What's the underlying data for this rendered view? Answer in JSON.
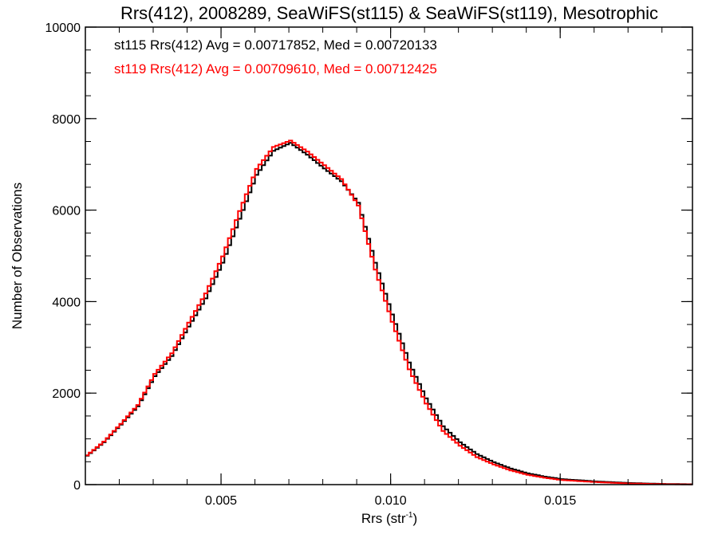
{
  "chart_data": {
    "type": "line",
    "style": "step histogram",
    "title": "Rrs(412), 2008289, SeaWiFS(st115) & SeaWiFS(st119), Mesotrophic",
    "xlabel": "Rrs (str",
    "xlabel_sup": "-1",
    "xlabel_end": ")",
    "ylabel": "Number of Observations",
    "xlim": [
      0.001,
      0.0189
    ],
    "ylim": [
      0,
      10000
    ],
    "x_ticks": [
      0.005,
      0.01,
      0.015
    ],
    "x_tick_labels": [
      "0.005",
      "0.010",
      "0.015"
    ],
    "x_minor_step": 0.001,
    "y_ticks": [
      0,
      2000,
      4000,
      6000,
      8000,
      10000
    ],
    "y_tick_labels": [
      "0",
      "2000",
      "4000",
      "6000",
      "8000",
      "10000"
    ],
    "y_minor_step": 500,
    "grid": false,
    "legend_position": "top-left",
    "annotations": [
      {
        "text": "st115 Rrs(412) Avg = 0.00717852, Med = 0.00720133",
        "color": "#000000"
      },
      {
        "text": "st119 Rrs(412) Avg = 0.00709610, Med = 0.00712425",
        "color": "#ff0000"
      }
    ],
    "x": [
      0.001,
      0.0015,
      0.002,
      0.0025,
      0.003,
      0.0035,
      0.004,
      0.0045,
      0.005,
      0.0055,
      0.006,
      0.0065,
      0.007,
      0.0075,
      0.008,
      0.0085,
      0.009,
      0.0095,
      0.01,
      0.0105,
      0.011,
      0.0115,
      0.012,
      0.0125,
      0.013,
      0.0135,
      0.014,
      0.0145,
      0.015,
      0.016,
      0.017,
      0.018,
      0.0189
    ],
    "series": [
      {
        "name": "st115",
        "color": "#000000",
        "values": [
          630,
          925,
          1310,
          1710,
          2370,
          2810,
          3455,
          4070,
          4850,
          5810,
          6770,
          7295,
          7470,
          7210,
          6910,
          6630,
          6160,
          4850,
          3720,
          2670,
          1885,
          1275,
          925,
          665,
          490,
          350,
          245,
          175,
          120,
          70,
          35,
          15,
          8
        ]
      },
      {
        "name": "st119",
        "color": "#ff0000",
        "values": [
          640,
          940,
          1330,
          1740,
          2420,
          2870,
          3540,
          4180,
          4990,
          5980,
          6900,
          7380,
          7520,
          7280,
          6980,
          6680,
          6100,
          4700,
          3560,
          2520,
          1770,
          1170,
          850,
          600,
          440,
          310,
          215,
          150,
          100,
          55,
          25,
          10,
          5
        ]
      }
    ]
  }
}
